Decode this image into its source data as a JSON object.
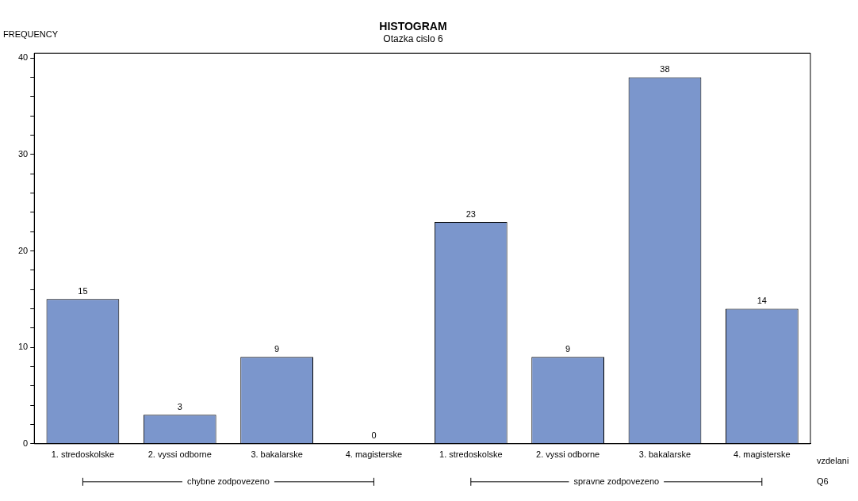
{
  "chart_data": {
    "type": "bar",
    "title": "HISTOGRAM",
    "subtitle": "Otazka cislo 6",
    "ylabel": "FREQUENCY",
    "xlabel": "vzdelani",
    "categories": [
      "1. stredoskolske",
      "2. vyssi odborne",
      "3. bakalarske",
      "4. magisterske",
      "1. stredoskolske",
      "2. vyssi odborne",
      "3. bakalarske",
      "4. magisterske"
    ],
    "values": [
      15,
      3,
      9,
      0,
      23,
      9,
      38,
      14
    ],
    "color": "#7b96cc",
    "data_labels": true,
    "grid": false,
    "legend": false,
    "ylim": [
      0,
      40.5
    ],
    "yticks": [
      0,
      {
        "value": 2,
        "label": null
      },
      {
        "value": 4,
        "label": null
      },
      {
        "value": 6,
        "label": null
      },
      {
        "value": 8,
        "label": null
      },
      10,
      {
        "value": 12,
        "label": null
      },
      {
        "value": 14,
        "label": null
      },
      {
        "value": 16,
        "label": null
      },
      {
        "value": 18,
        "label": null
      },
      20,
      {
        "value": 22,
        "label": null
      },
      {
        "value": 24,
        "label": null
      },
      {
        "value": 26,
        "label": null
      },
      {
        "value": 28,
        "label": null
      },
      30,
      {
        "value": 32,
        "label": null
      },
      {
        "value": 34,
        "label": null
      },
      {
        "value": 36,
        "label": null
      },
      {
        "value": 38,
        "label": null
      },
      40
    ],
    "annotations": [
      "chybne zodpovezeno",
      "spravne zodpovezeno",
      "Q6"
    ]
  }
}
